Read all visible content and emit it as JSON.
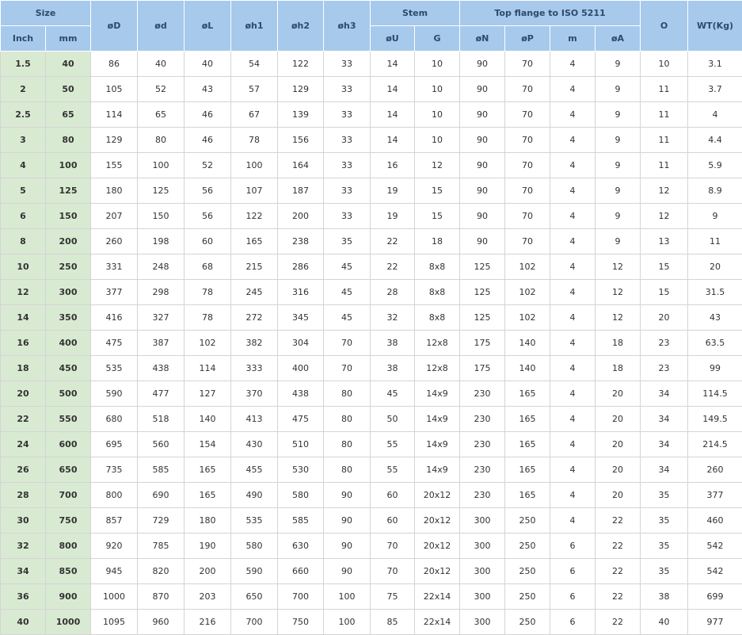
{
  "header": {
    "row1": [
      "Size",
      "øD",
      "ød",
      "øL",
      "øh1",
      "øh2",
      "øh3",
      "Stem",
      "Top flange to ISO 5211",
      "O",
      "WT(Kg)"
    ],
    "row2": [
      "Inch",
      "mm",
      "øU",
      "G",
      "øN",
      "øP",
      "m",
      "øA"
    ]
  },
  "table": {
    "rows": [
      [
        "1.5",
        "40",
        "86",
        "40",
        "40",
        "54",
        "122",
        "33",
        "14",
        "10",
        "90",
        "70",
        "4",
        "9",
        "10",
        "3.1"
      ],
      [
        "2",
        "50",
        "105",
        "52",
        "43",
        "57",
        "129",
        "33",
        "14",
        "10",
        "90",
        "70",
        "4",
        "9",
        "11",
        "3.7"
      ],
      [
        "2.5",
        "65",
        "114",
        "65",
        "46",
        "67",
        "139",
        "33",
        "14",
        "10",
        "90",
        "70",
        "4",
        "9",
        "11",
        "4"
      ],
      [
        "3",
        "80",
        "129",
        "80",
        "46",
        "78",
        "156",
        "33",
        "14",
        "10",
        "90",
        "70",
        "4",
        "9",
        "11",
        "4.4"
      ],
      [
        "4",
        "100",
        "155",
        "100",
        "52",
        "100",
        "164",
        "33",
        "16",
        "12",
        "90",
        "70",
        "4",
        "9",
        "11",
        "5.9"
      ],
      [
        "5",
        "125",
        "180",
        "125",
        "56",
        "107",
        "187",
        "33",
        "19",
        "15",
        "90",
        "70",
        "4",
        "9",
        "12",
        "8.9"
      ],
      [
        "6",
        "150",
        "207",
        "150",
        "56",
        "122",
        "200",
        "33",
        "19",
        "15",
        "90",
        "70",
        "4",
        "9",
        "12",
        "9"
      ],
      [
        "8",
        "200",
        "260",
        "198",
        "60",
        "165",
        "238",
        "35",
        "22",
        "18",
        "90",
        "70",
        "4",
        "9",
        "13",
        "11"
      ],
      [
        "10",
        "250",
        "331",
        "248",
        "68",
        "215",
        "286",
        "45",
        "22",
        "8x8",
        "125",
        "102",
        "4",
        "12",
        "15",
        "20"
      ],
      [
        "12",
        "300",
        "377",
        "298",
        "78",
        "245",
        "316",
        "45",
        "28",
        "8x8",
        "125",
        "102",
        "4",
        "12",
        "15",
        "31.5"
      ],
      [
        "14",
        "350",
        "416",
        "327",
        "78",
        "272",
        "345",
        "45",
        "32",
        "8x8",
        "125",
        "102",
        "4",
        "12",
        "20",
        "43"
      ],
      [
        "16",
        "400",
        "475",
        "387",
        "102",
        "382",
        "304",
        "70",
        "38",
        "12x8",
        "175",
        "140",
        "4",
        "18",
        "23",
        "63.5"
      ],
      [
        "18",
        "450",
        "535",
        "438",
        "114",
        "333",
        "400",
        "70",
        "38",
        "12x8",
        "175",
        "140",
        "4",
        "18",
        "23",
        "99"
      ],
      [
        "20",
        "500",
        "590",
        "477",
        "127",
        "370",
        "438",
        "80",
        "45",
        "14x9",
        "230",
        "165",
        "4",
        "20",
        "34",
        "114.5"
      ],
      [
        "22",
        "550",
        "680",
        "518",
        "140",
        "413",
        "475",
        "80",
        "50",
        "14x9",
        "230",
        "165",
        "4",
        "20",
        "34",
        "149.5"
      ],
      [
        "24",
        "600",
        "695",
        "560",
        "154",
        "430",
        "510",
        "80",
        "55",
        "14x9",
        "230",
        "165",
        "4",
        "20",
        "34",
        "214.5"
      ],
      [
        "26",
        "650",
        "735",
        "585",
        "165",
        "455",
        "530",
        "80",
        "55",
        "14x9",
        "230",
        "165",
        "4",
        "20",
        "34",
        "260"
      ],
      [
        "28",
        "700",
        "800",
        "690",
        "165",
        "490",
        "580",
        "90",
        "60",
        "20x12",
        "230",
        "165",
        "4",
        "20",
        "35",
        "377"
      ],
      [
        "30",
        "750",
        "857",
        "729",
        "180",
        "535",
        "585",
        "90",
        "60",
        "20x12",
        "300",
        "250",
        "4",
        "22",
        "35",
        "460"
      ],
      [
        "32",
        "800",
        "920",
        "785",
        "190",
        "580",
        "630",
        "90",
        "70",
        "20x12",
        "300",
        "250",
        "6",
        "22",
        "35",
        "542"
      ],
      [
        "34",
        "850",
        "945",
        "820",
        "200",
        "590",
        "660",
        "90",
        "70",
        "20x12",
        "300",
        "250",
        "6",
        "22",
        "35",
        "542"
      ],
      [
        "36",
        "900",
        "1000",
        "870",
        "203",
        "650",
        "700",
        "100",
        "75",
        "22x14",
        "300",
        "250",
        "6",
        "22",
        "38",
        "699"
      ],
      [
        "40",
        "1000",
        "1095",
        "960",
        "216",
        "700",
        "750",
        "100",
        "85",
        "22x14",
        "300",
        "250",
        "6",
        "22",
        "40",
        "977"
      ]
    ]
  }
}
